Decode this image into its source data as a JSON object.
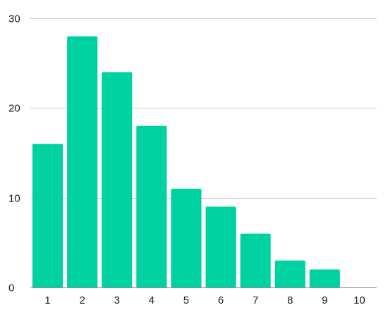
{
  "chart_data": {
    "type": "bar",
    "categories": [
      "1",
      "2",
      "3",
      "4",
      "5",
      "6",
      "7",
      "8",
      "9",
      "10"
    ],
    "values": [
      16,
      28,
      24,
      18,
      11,
      9,
      6,
      3,
      2,
      0
    ],
    "title": "",
    "xlabel": "",
    "ylabel": "",
    "ylim": [
      0,
      30
    ],
    "yticks": [
      0,
      10,
      20,
      30
    ],
    "grid": true,
    "legend": "none",
    "bar_color": "#00d1a0"
  }
}
